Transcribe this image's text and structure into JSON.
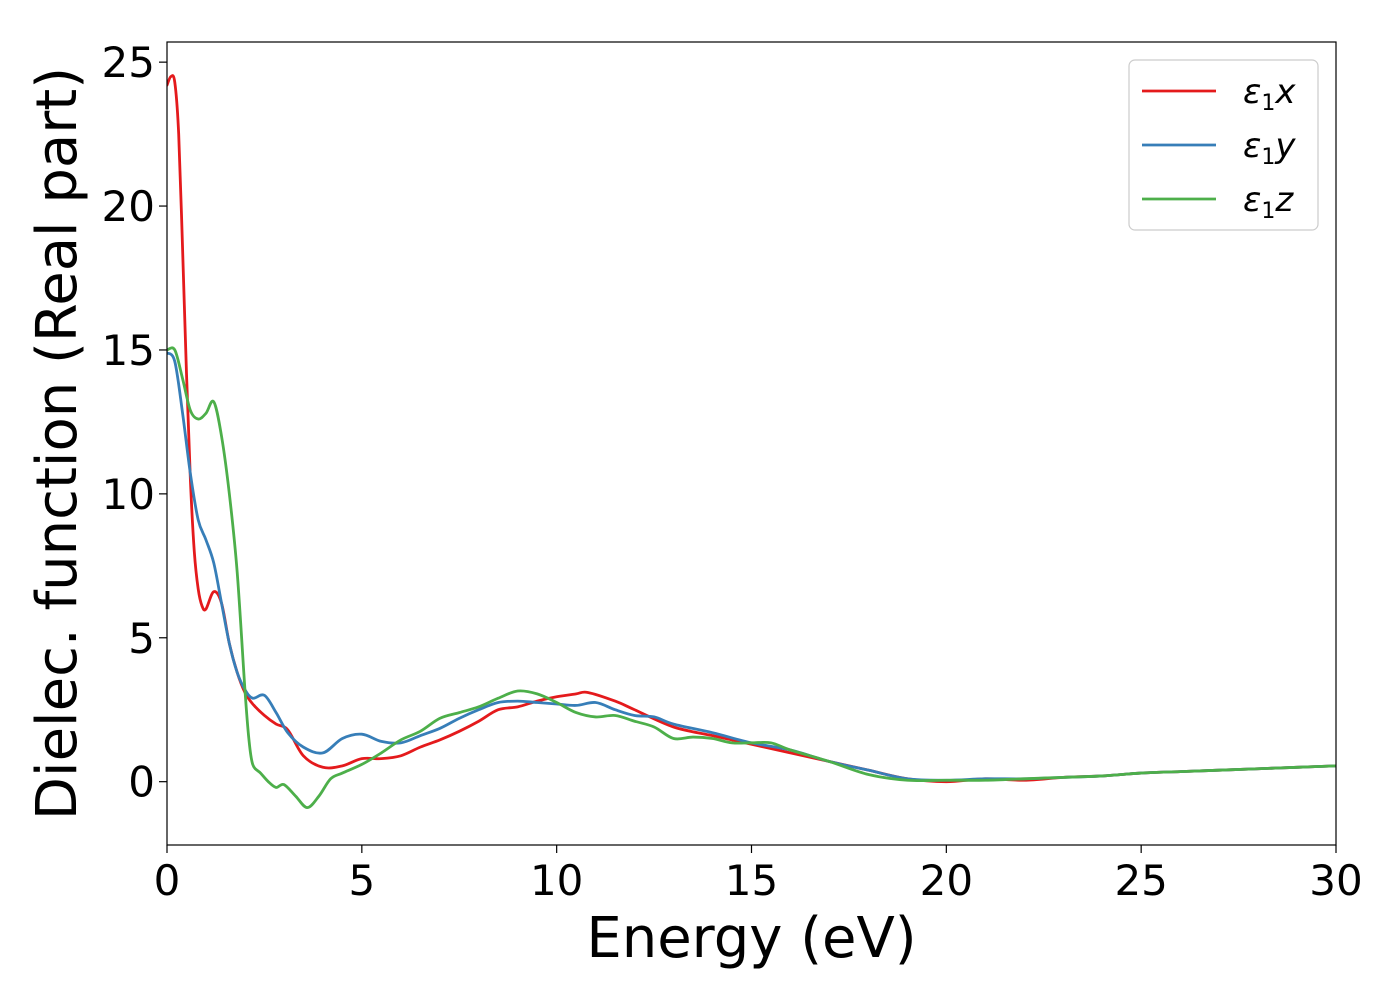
{
  "chart_data": {
    "type": "line",
    "xlabel": "Energy (eV)",
    "ylabel": "Dielec. function (Real part)",
    "xlim": [
      0,
      30
    ],
    "ylim": [
      -2.2,
      25.7
    ],
    "xticks": [
      0,
      5,
      10,
      15,
      20,
      25,
      30
    ],
    "xtick_labels": [
      "0",
      "5",
      "10",
      "15",
      "20",
      "25",
      "30"
    ],
    "yticks": [
      0,
      5,
      10,
      15,
      20,
      25
    ],
    "ytick_labels": [
      "0",
      "5",
      "10",
      "15",
      "20",
      "25"
    ],
    "grid": false,
    "legend_position": "top-right",
    "series": [
      {
        "name": "ε1x",
        "name_base": "ε",
        "name_sub": "1",
        "name_var": "x",
        "color": "#e41a1c",
        "x": [
          0,
          0.1,
          0.2,
          0.3,
          0.4,
          0.5,
          0.6,
          0.7,
          0.8,
          0.9,
          1.0,
          1.2,
          1.4,
          1.6,
          1.8,
          2.0,
          2.2,
          2.5,
          2.8,
          3.1,
          3.5,
          4.0,
          4.5,
          5.0,
          5.5,
          6.0,
          6.5,
          7.0,
          7.5,
          8.0,
          8.5,
          9.0,
          9.5,
          10.0,
          10.5,
          10.8,
          11.5,
          12.0,
          13.0,
          14.0,
          15.0,
          16.0,
          17.0,
          18.0,
          19.0,
          20.0,
          21.0,
          22.0,
          23.0,
          24.0,
          25.0,
          26.0,
          27.0,
          28.0,
          29.0,
          30.0
        ],
        "y": [
          24.2,
          24.5,
          24.3,
          22.5,
          18.5,
          14.2,
          10.5,
          8.0,
          6.7,
          6.1,
          6.0,
          6.6,
          6.2,
          4.8,
          3.8,
          3.1,
          2.7,
          2.3,
          2.0,
          1.8,
          0.9,
          0.5,
          0.55,
          0.8,
          0.8,
          0.9,
          1.2,
          1.45,
          1.75,
          2.1,
          2.5,
          2.6,
          2.8,
          2.95,
          3.05,
          3.1,
          2.8,
          2.5,
          1.9,
          1.6,
          1.3,
          1.0,
          0.7,
          0.4,
          0.1,
          0.0,
          0.1,
          0.05,
          0.15,
          0.2,
          0.3,
          0.35,
          0.4,
          0.45,
          0.5,
          0.55
        ]
      },
      {
        "name": "ε1y",
        "name_base": "ε",
        "name_sub": "1",
        "name_var": "y",
        "color": "#377eb8",
        "x": [
          0,
          0.2,
          0.4,
          0.6,
          0.8,
          1.0,
          1.2,
          1.4,
          1.6,
          1.8,
          2.0,
          2.2,
          2.5,
          2.8,
          3.1,
          3.5,
          4.0,
          4.5,
          5.0,
          5.5,
          6.0,
          6.5,
          7.0,
          7.5,
          8.0,
          8.5,
          9.0,
          9.5,
          10.0,
          10.5,
          11.0,
          11.5,
          12.0,
          12.5,
          13.0,
          14.0,
          15.0,
          16.0,
          17.0,
          18.0,
          19.0,
          20.0,
          21.0,
          22.0,
          23.0,
          24.0,
          25.0,
          26.0,
          27.0,
          28.0,
          29.0,
          30.0
        ],
        "y": [
          14.9,
          14.6,
          12.8,
          10.7,
          9.1,
          8.4,
          7.6,
          6.2,
          4.8,
          3.8,
          3.2,
          2.9,
          3.0,
          2.4,
          1.7,
          1.2,
          1.0,
          1.5,
          1.65,
          1.4,
          1.35,
          1.6,
          1.85,
          2.2,
          2.5,
          2.75,
          2.8,
          2.75,
          2.7,
          2.65,
          2.75,
          2.5,
          2.3,
          2.25,
          2.0,
          1.7,
          1.35,
          1.1,
          0.7,
          0.4,
          0.1,
          0.05,
          0.1,
          0.1,
          0.15,
          0.2,
          0.3,
          0.35,
          0.4,
          0.45,
          0.5,
          0.55
        ]
      },
      {
        "name": "ε1z",
        "name_base": "ε",
        "name_sub": "1",
        "name_var": "z",
        "color": "#4daf4a",
        "x": [
          0,
          0.2,
          0.4,
          0.6,
          0.8,
          1.0,
          1.2,
          1.4,
          1.6,
          1.8,
          2.0,
          2.1,
          2.2,
          2.4,
          2.6,
          2.8,
          3.0,
          3.3,
          3.6,
          3.9,
          4.2,
          4.5,
          5.0,
          5.5,
          6.0,
          6.5,
          7.0,
          7.5,
          8.0,
          8.5,
          9.0,
          9.5,
          10.0,
          10.5,
          11.0,
          11.5,
          12.0,
          12.5,
          13.0,
          13.5,
          14.0,
          14.5,
          15.0,
          15.5,
          16.0,
          17.0,
          18.0,
          19.0,
          20.0,
          21.0,
          22.0,
          23.0,
          24.0,
          25.0,
          26.0,
          27.0,
          28.0,
          29.0,
          30.0
        ],
        "y": [
          15.0,
          15.0,
          14.0,
          12.9,
          12.6,
          12.8,
          13.2,
          12.0,
          10.0,
          7.3,
          3.2,
          1.5,
          0.6,
          0.3,
          0.0,
          -0.2,
          -0.1,
          -0.5,
          -0.9,
          -0.5,
          0.1,
          0.3,
          0.6,
          1.0,
          1.45,
          1.75,
          2.2,
          2.4,
          2.6,
          2.9,
          3.15,
          3.05,
          2.75,
          2.4,
          2.25,
          2.3,
          2.1,
          1.9,
          1.5,
          1.55,
          1.5,
          1.35,
          1.35,
          1.35,
          1.1,
          0.7,
          0.25,
          0.05,
          0.05,
          0.05,
          0.1,
          0.15,
          0.2,
          0.3,
          0.35,
          0.4,
          0.45,
          0.5,
          0.55
        ]
      }
    ]
  }
}
